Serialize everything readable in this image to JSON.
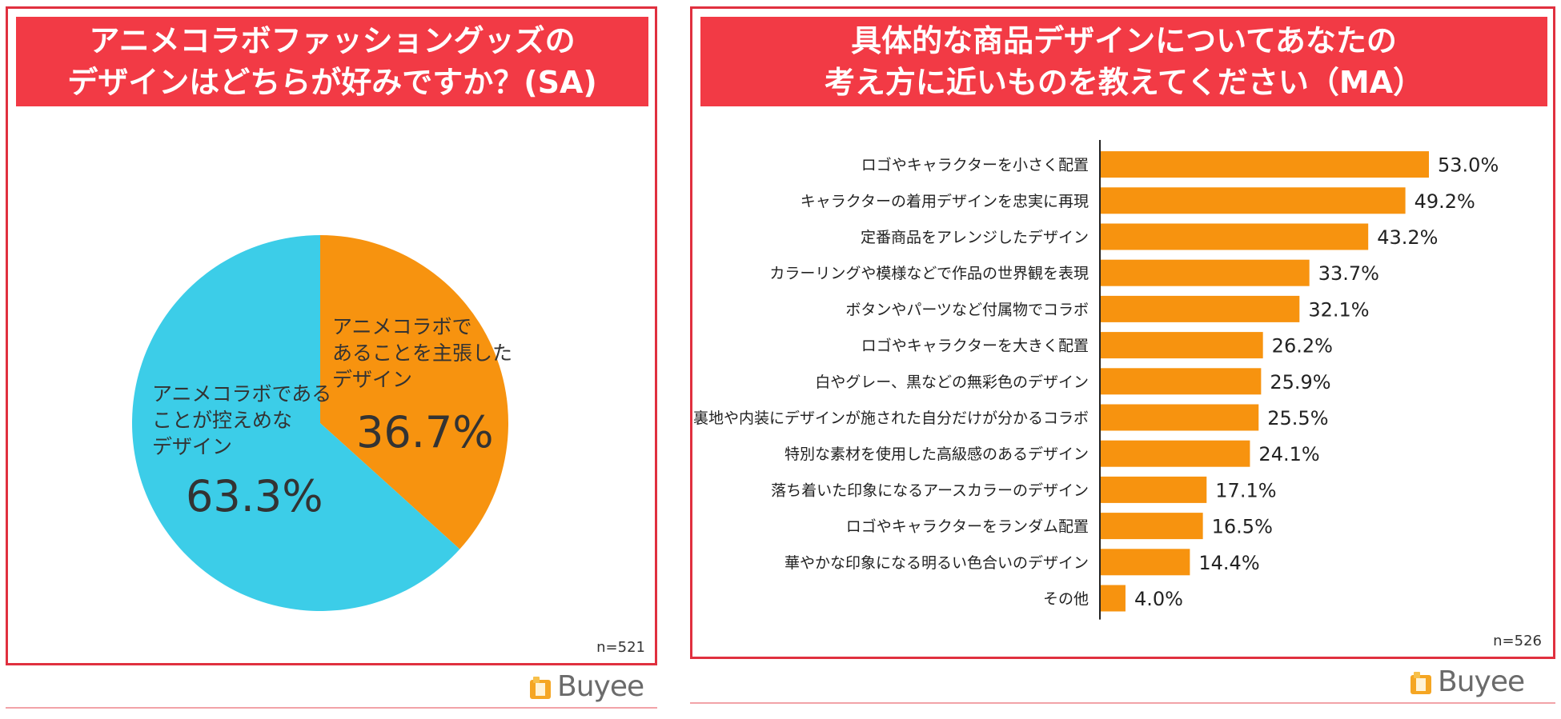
{
  "colors": {
    "frame": "#e0303f",
    "title_bg": "#f23a45",
    "title_text": "#ffffff",
    "orange": "#f7930f",
    "cyan": "#3ccde8",
    "text": "#333333"
  },
  "left": {
    "title_line1": "アニメコラボファッショングッズの",
    "title_line2": "デザインはどちらが好みですか？(SA)",
    "n": "n=521"
  },
  "right": {
    "title_line1": "具体的な商品デザインについてあなたの",
    "title_line2": "考え方に近いものを教えてください（MA）",
    "n": "n=526"
  },
  "logo": {
    "text": "Buyee",
    "icon": "buyee-bag-icon"
  },
  "chart_data": [
    {
      "type": "pie",
      "title": "アニメコラボファッショングッズのデザインはどちらが好みですか？(SA)",
      "slices": [
        {
          "label_lines": [
            "アニメコラボで",
            "あることを主張した",
            "デザイン"
          ],
          "value": 36.7,
          "value_label": "36.7%",
          "color": "#f7930f"
        },
        {
          "label_lines": [
            "アニメコラボである",
            "ことが控えめな",
            "デザイン"
          ],
          "value": 63.3,
          "value_label": "63.3%",
          "color": "#3ccde8"
        }
      ],
      "start": "12 o'clock, clockwise"
    },
    {
      "type": "bar",
      "orientation": "horizontal",
      "title": "具体的な商品デザインについてあなたの考え方に近いものを教えてください（MA）",
      "categories": [
        "ロゴやキャラクターを小さく配置",
        "キャラクターの着用デザインを忠実に再現",
        "定番商品をアレンジしたデザイン",
        "カラーリングや模様などで作品の世界観を表現",
        "ボタンやパーツなど付属物でコラボ",
        "ロゴやキャラクターを大きく配置",
        "白やグレー、黒などの無彩色のデザイン",
        "裏地や内装にデザインが施された自分だけが分かるコラボ",
        "特別な素材を使用した高級感のあるデザイン",
        "落ち着いた印象になるアースカラーのデザイン",
        "ロゴやキャラクターをランダム配置",
        "華やかな印象になる明るい色合いのデザイン",
        "その他"
      ],
      "values": [
        53.0,
        49.2,
        43.2,
        33.7,
        32.1,
        26.2,
        25.9,
        25.5,
        24.1,
        17.1,
        16.5,
        14.4,
        4.0
      ],
      "value_labels": [
        "53.0%",
        "49.2%",
        "43.2%",
        "33.7%",
        "32.1%",
        "26.2%",
        "25.9%",
        "25.5%",
        "24.1%",
        "17.1%",
        "16.5%",
        "14.4%",
        "4.0%"
      ],
      "xlim": [
        0,
        55
      ],
      "bar_color": "#f7930f",
      "grid": false
    }
  ]
}
